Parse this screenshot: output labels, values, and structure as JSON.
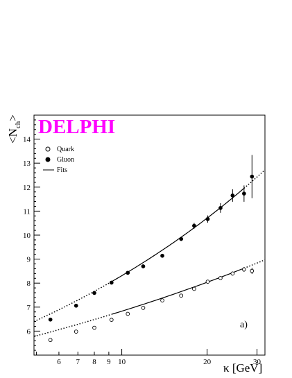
{
  "chart_data": {
    "type": "scatter",
    "brand": "DELPHI",
    "brand_color": "#ff00ff",
    "panel_label": "a)",
    "xlabel": "κ [GeV]",
    "ylabel_main": "<N",
    "ylabel_sub": "ch",
    "ylabel_close": ">",
    "x_scale": "log",
    "xlim": [
      4.9,
      32
    ],
    "ylim": [
      5,
      15
    ],
    "x_ticks": [
      5,
      6,
      7,
      8,
      9,
      10,
      20,
      30
    ],
    "x_tick_labels": [
      {
        "value": 6,
        "label": "6"
      },
      {
        "value": 7,
        "label": "7"
      },
      {
        "value": 8,
        "label": "8"
      },
      {
        "value": 9,
        "label": "9"
      },
      {
        "value": 10,
        "label": "10"
      },
      {
        "value": 20,
        "label": "20"
      },
      {
        "value": 30,
        "label": "30"
      }
    ],
    "y_ticks": [
      {
        "value": 6,
        "label": "6"
      },
      {
        "value": 7,
        "label": "7"
      },
      {
        "value": 8,
        "label": "8"
      },
      {
        "value": 9,
        "label": "9"
      },
      {
        "value": 10,
        "label": "10"
      },
      {
        "value": 11,
        "label": "11"
      },
      {
        "value": 12,
        "label": "12"
      },
      {
        "value": 13,
        "label": "13"
      },
      {
        "value": 14,
        "label": "14"
      }
    ],
    "legend": [
      {
        "label": "Quark",
        "marker": "open-circle"
      },
      {
        "label": "Gluon",
        "marker": "filled-circle"
      },
      {
        "label": "Fits",
        "marker": "line"
      }
    ],
    "series": [
      {
        "name": "Quark",
        "marker": "open-circle",
        "x": [
          5.6,
          6.9,
          8.0,
          9.2,
          10.5,
          11.9,
          13.9,
          16.2,
          18.0,
          20.1,
          22.3,
          24.6,
          27.0,
          28.8
        ],
        "y": [
          5.63,
          5.98,
          6.14,
          6.47,
          6.72,
          6.97,
          7.28,
          7.48,
          7.76,
          8.06,
          8.21,
          8.4,
          8.57,
          8.51
        ],
        "err": [
          0.04,
          0.04,
          0.04,
          0.04,
          0.04,
          0.04,
          0.04,
          0.04,
          0.04,
          0.05,
          0.06,
          0.08,
          0.1,
          0.13
        ]
      },
      {
        "name": "Gluon",
        "marker": "filled-circle",
        "x": [
          5.6,
          6.9,
          8.0,
          9.2,
          10.5,
          11.9,
          13.9,
          16.2,
          18.0,
          20.1,
          22.3,
          24.6,
          27.0,
          28.8
        ],
        "y": [
          6.48,
          7.06,
          7.59,
          8.02,
          8.43,
          8.7,
          9.14,
          9.84,
          10.39,
          10.67,
          11.13,
          11.65,
          11.73,
          12.44
        ],
        "err": [
          0.04,
          0.05,
          0.05,
          0.05,
          0.05,
          0.06,
          0.07,
          0.08,
          0.12,
          0.15,
          0.2,
          0.26,
          0.34,
          0.9
        ]
      }
    ],
    "fits": [
      {
        "name": "Quark fit",
        "x": [
          4.9,
          32
        ],
        "y": [
          5.78,
          8.97
        ],
        "solid_x": [
          9.2,
          27.0
        ]
      },
      {
        "name": "Gluon fit",
        "x": [
          4.9,
          32
        ],
        "y": [
          6.4,
          12.72
        ],
        "solid_x": [
          9.2,
          27.0
        ]
      }
    ]
  }
}
